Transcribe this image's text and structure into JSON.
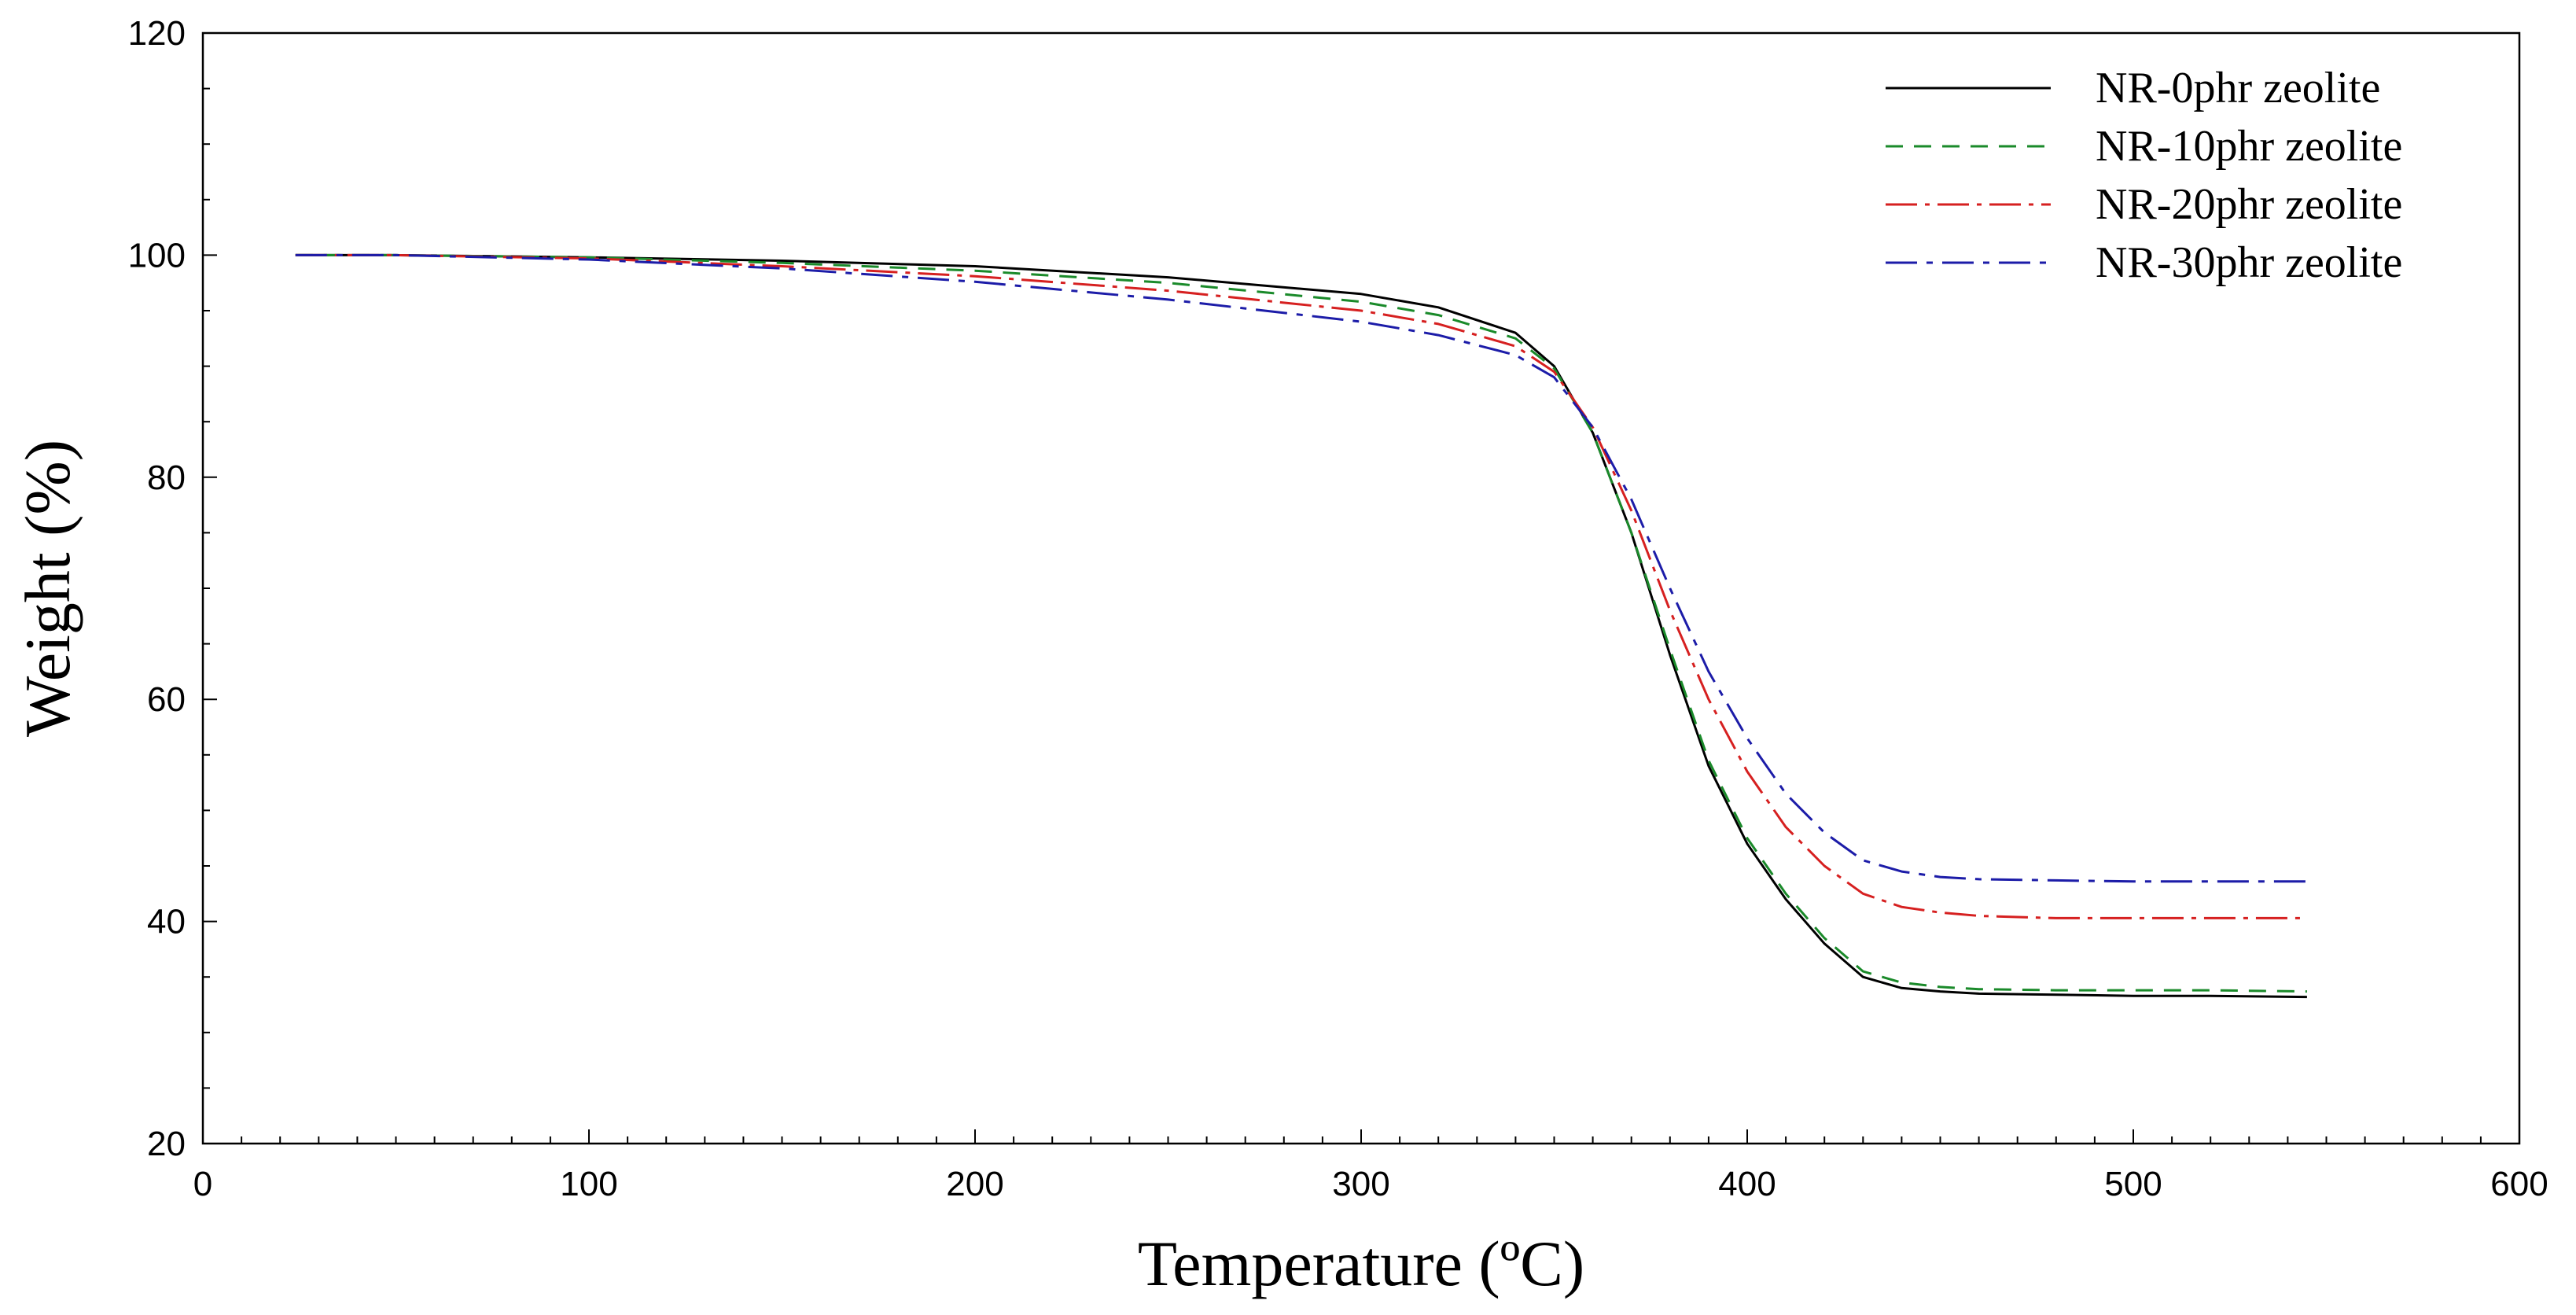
{
  "chart_data": {
    "type": "line",
    "xlabel": "Temperature (ºC)",
    "ylabel": "Weight (%)",
    "xlim": [
      0,
      600
    ],
    "ylim": [
      20,
      120
    ],
    "xticks": [
      0,
      100,
      200,
      300,
      400,
      500,
      600
    ],
    "yticks": [
      20,
      40,
      60,
      80,
      100,
      120
    ],
    "grid": false,
    "legend_position": "top-right",
    "x": [
      24,
      50,
      100,
      150,
      200,
      250,
      300,
      320,
      340,
      350,
      360,
      370,
      380,
      390,
      400,
      410,
      420,
      430,
      440,
      450,
      460,
      480,
      500,
      520,
      545
    ],
    "series": [
      {
        "name": "NR-0phr zeolite",
        "color": "#000000",
        "dash": "",
        "values": [
          100,
          100,
          99.8,
          99.5,
          99,
          98,
          96.5,
          95.3,
          93,
          90,
          84,
          75,
          64,
          54,
          47,
          42,
          38,
          35,
          34,
          33.7,
          33.5,
          33.4,
          33.3,
          33.3,
          33.2
        ]
      },
      {
        "name": "NR-10phr zeolite",
        "color": "#1a8a2a",
        "dash": "22,14",
        "values": [
          100,
          100,
          99.8,
          99.3,
          98.6,
          97.5,
          95.8,
          94.6,
          92.5,
          89.8,
          84,
          75,
          64.5,
          54.5,
          47.5,
          42.5,
          38.5,
          35.5,
          34.5,
          34.1,
          33.9,
          33.8,
          33.8,
          33.8,
          33.7
        ]
      },
      {
        "name": "NR-20phr zeolite",
        "color": "#d62020",
        "dash": "40,10,6,10",
        "values": [
          100,
          100,
          99.7,
          99,
          98.1,
          96.8,
          95,
          93.8,
          91.8,
          89.5,
          84.5,
          77,
          68,
          60,
          53.5,
          48.5,
          45,
          42.5,
          41.3,
          40.8,
          40.5,
          40.3,
          40.3,
          40.3,
          40.3
        ]
      },
      {
        "name": "NR-30phr zeolite",
        "color": "#1c1ca8",
        "dash": "40,12,8,12",
        "values": [
          100,
          100,
          99.6,
          98.8,
          97.6,
          96,
          94,
          92.8,
          91,
          89,
          84.5,
          78,
          70,
          62.5,
          56.5,
          51.5,
          48,
          45.5,
          44.5,
          44,
          43.8,
          43.7,
          43.6,
          43.6,
          43.6
        ]
      }
    ]
  }
}
